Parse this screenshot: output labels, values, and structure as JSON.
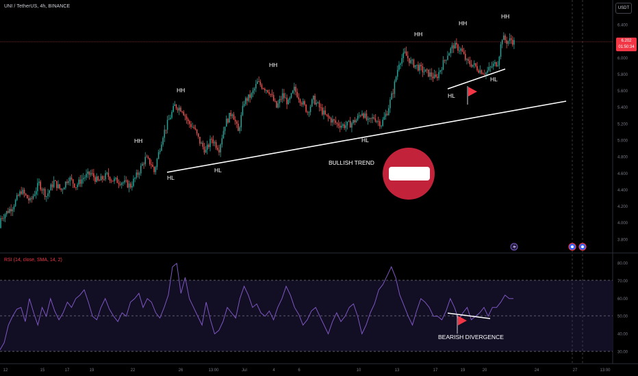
{
  "header": {
    "symbol_line": "UNI / TetherUS, 4h, BINANCE",
    "currency_button": "USDT",
    "rsi_line": "RSI (14, close, SMA, 14, 2)"
  },
  "price_badge": {
    "price": "6.202",
    "countdown": "01:50:34"
  },
  "colors": {
    "up": "#26a69a",
    "down": "#ef5350",
    "rsi_line": "#7e57c2",
    "rsi_band": "#14102a",
    "accent_red": "#c2223a"
  },
  "icons": [
    "no-entry-icon",
    "flag-icon",
    "lightning-icon",
    "event-icon"
  ],
  "chart_data": [
    {
      "type": "candlestick",
      "title": "UNI / TetherUS, 4h, BINANCE",
      "ylim": [
        3.72,
        6.52
      ],
      "y_ticks": [
        "6.400",
        "6.200",
        "6.000",
        "5.800",
        "5.600",
        "5.400",
        "5.200",
        "5.000",
        "4.800",
        "4.600",
        "4.400",
        "4.200",
        "4.000",
        "3.800"
      ],
      "x_ticks": [
        "12",
        "15",
        "17",
        "19",
        "22",
        "26",
        "13:00",
        "Jul",
        "4",
        "6",
        "10",
        "13",
        "17",
        "19",
        "20",
        "24",
        "27",
        "13:00"
      ],
      "close_path": [
        [
          0,
          4.06
        ],
        [
          8,
          4.2
        ],
        [
          14,
          4.39
        ],
        [
          20,
          4.26
        ],
        [
          26,
          4.48
        ],
        [
          31,
          4.33
        ],
        [
          36,
          4.5
        ],
        [
          41,
          4.4
        ],
        [
          46,
          4.55
        ],
        [
          51,
          4.45
        ],
        [
          56,
          4.55
        ],
        [
          61,
          4.6
        ],
        [
          66,
          4.5
        ],
        [
          72,
          4.58
        ],
        [
          76,
          4.52
        ],
        [
          82,
          4.5
        ],
        [
          88,
          4.45
        ],
        [
          93,
          4.6
        ],
        [
          98,
          4.78
        ],
        [
          102,
          4.72
        ],
        [
          104,
          4.62
        ],
        [
          110,
          5.07
        ],
        [
          114,
          5.25
        ],
        [
          118,
          5.42
        ],
        [
          123,
          5.38
        ],
        [
          127,
          5.22
        ],
        [
          131,
          5.15
        ],
        [
          135,
          4.98
        ],
        [
          139,
          4.87
        ],
        [
          143,
          5.02
        ],
        [
          148,
          4.9
        ],
        [
          152,
          5.2
        ],
        [
          157,
          5.35
        ],
        [
          161,
          5.1
        ],
        [
          165,
          5.47
        ],
        [
          170,
          5.55
        ],
        [
          174,
          5.7
        ],
        [
          178,
          5.65
        ],
        [
          182,
          5.6
        ],
        [
          187,
          5.4
        ],
        [
          191,
          5.55
        ],
        [
          195,
          5.45
        ],
        [
          199,
          5.62
        ],
        [
          203,
          5.5
        ],
        [
          208,
          5.35
        ],
        [
          212,
          5.5
        ],
        [
          216,
          5.4
        ],
        [
          220,
          5.3
        ],
        [
          224,
          5.25
        ],
        [
          228,
          5.2
        ],
        [
          233,
          5.18
        ],
        [
          237,
          5.2
        ],
        [
          241,
          5.25
        ],
        [
          245,
          5.35
        ],
        [
          249,
          5.22
        ],
        [
          253,
          5.28
        ],
        [
          258,
          5.2
        ],
        [
          262,
          5.35
        ],
        [
          266,
          5.6
        ],
        [
          270,
          5.95
        ],
        [
          274,
          6.05
        ],
        [
          278,
          5.95
        ],
        [
          282,
          5.9
        ],
        [
          286,
          5.85
        ],
        [
          291,
          5.8
        ],
        [
          295,
          5.75
        ],
        [
          299,
          5.9
        ],
        [
          303,
          6.05
        ],
        [
          307,
          6.15
        ],
        [
          312,
          6.1
        ],
        [
          316,
          5.95
        ],
        [
          320,
          5.92
        ],
        [
          325,
          5.85
        ],
        [
          329,
          5.82
        ],
        [
          333,
          5.9
        ],
        [
          337,
          5.95
        ],
        [
          340,
          6.25
        ],
        [
          343,
          6.2
        ],
        [
          346,
          6.22
        ],
        [
          348,
          6.19
        ]
      ],
      "y_seed": 3.94
    },
    {
      "type": "line",
      "title": "RSI (14, close, SMA, 14, 2)",
      "ylim": [
        27,
        82
      ],
      "y_ticks": [
        "80.00",
        "70.00",
        "60.00",
        "50.00",
        "40.00",
        "30.00"
      ],
      "bands": [
        30,
        50,
        70
      ],
      "series": [
        {
          "values": [
            31,
            35,
            45,
            50,
            54,
            55,
            47,
            60,
            52,
            45,
            55,
            50,
            60,
            53,
            48,
            52,
            58,
            55,
            60,
            62,
            65,
            58,
            50,
            48,
            55,
            60,
            54,
            50,
            47,
            52,
            50,
            58,
            60,
            63,
            55,
            60,
            58,
            52,
            49,
            55,
            62,
            78,
            80,
            63,
            72,
            60,
            55,
            50,
            45,
            58,
            48,
            40,
            42,
            47,
            55,
            52,
            49,
            60,
            67,
            62,
            55,
            57,
            52,
            50,
            53,
            48,
            55,
            60,
            67,
            62,
            55,
            51,
            45,
            48,
            53,
            55,
            50,
            45,
            40,
            47,
            52,
            47,
            50,
            55,
            57,
            50,
            40,
            45,
            52,
            57,
            65,
            68,
            73,
            78,
            72,
            62,
            56,
            50,
            45,
            53,
            60,
            58,
            55,
            50,
            50,
            48,
            53,
            60,
            55,
            48,
            52,
            55,
            48,
            50,
            52,
            55,
            50,
            55,
            55,
            58,
            62,
            60,
            60
          ]
        }
      ]
    }
  ],
  "annotations": {
    "hh": [
      "HH",
      "HH",
      "HH",
      "HH",
      "HH",
      "HH"
    ],
    "hl": [
      "HL",
      "HL",
      "HL",
      "HL",
      "HL"
    ],
    "bullish_trend": "BULLISH TREND",
    "bearish_divergence": "BEARISH DIVERGENCE"
  }
}
